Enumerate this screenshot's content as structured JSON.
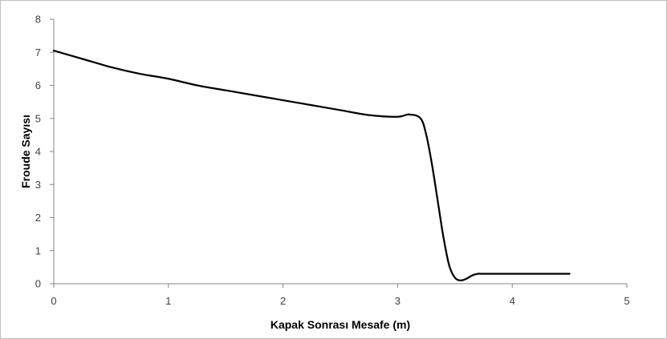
{
  "chart_data": {
    "type": "line",
    "title": "",
    "xlabel": "Kapak Sonrası Mesafe (m)",
    "ylabel": "Froude Sayısı",
    "xlim": [
      0,
      5
    ],
    "ylim": [
      0,
      8
    ],
    "x_ticks": [
      "0",
      "1",
      "2",
      "3",
      "4",
      "5"
    ],
    "y_ticks": [
      "0",
      "1",
      "2",
      "3",
      "4",
      "5",
      "6",
      "7",
      "8"
    ],
    "grid": false,
    "legend": "none",
    "line_color": "#000000",
    "series": [
      {
        "x": [
          0,
          0.25,
          0.5,
          0.75,
          1.0,
          1.25,
          1.5,
          1.75,
          2.0,
          2.25,
          2.5,
          2.75,
          3.0,
          3.1,
          3.2,
          3.25,
          3.3,
          3.35,
          3.4,
          3.45,
          3.5,
          3.55,
          3.6,
          3.65,
          3.7,
          3.75,
          4.0,
          4.25,
          4.5
        ],
        "y": [
          7.05,
          6.8,
          6.55,
          6.35,
          6.2,
          6.0,
          5.85,
          5.7,
          5.55,
          5.4,
          5.25,
          5.1,
          5.05,
          5.12,
          5.0,
          4.5,
          3.6,
          2.5,
          1.4,
          0.55,
          0.18,
          0.1,
          0.15,
          0.25,
          0.3,
          0.3,
          0.3,
          0.3,
          0.3
        ]
      }
    ]
  }
}
